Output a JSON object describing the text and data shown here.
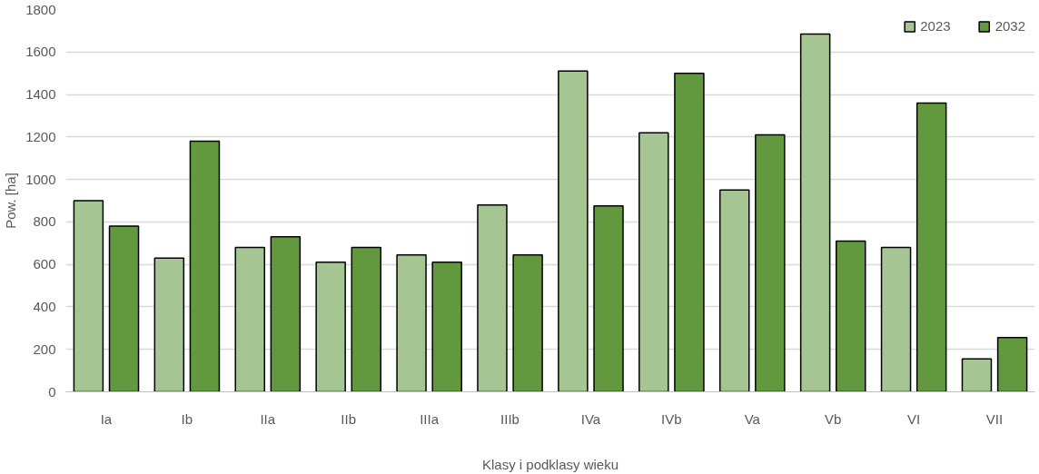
{
  "chart_data": {
    "type": "bar",
    "xlabel": "Klasy i podklasy wieku",
    "ylabel": "Pow. [ha]",
    "categories": [
      "Ia",
      "Ib",
      "IIa",
      "IIb",
      "IIIa",
      "IIIb",
      "IVa",
      "IVb",
      "Va",
      "Vb",
      "VI",
      "VII"
    ],
    "series": [
      {
        "name": "2023",
        "color": "#a5c592",
        "values": [
          900,
          630,
          680,
          610,
          645,
          880,
          1510,
          1220,
          950,
          1685,
          680,
          155
        ]
      },
      {
        "name": "2032",
        "color": "#62993f",
        "values": [
          780,
          1180,
          730,
          680,
          610,
          645,
          875,
          1500,
          1210,
          710,
          1360,
          255
        ]
      }
    ],
    "ylim": [
      0,
      1800
    ],
    "yticks": [
      0,
      200,
      400,
      600,
      800,
      1000,
      1200,
      1400,
      1600,
      1800
    ],
    "grid": "y",
    "legend": "top right"
  }
}
